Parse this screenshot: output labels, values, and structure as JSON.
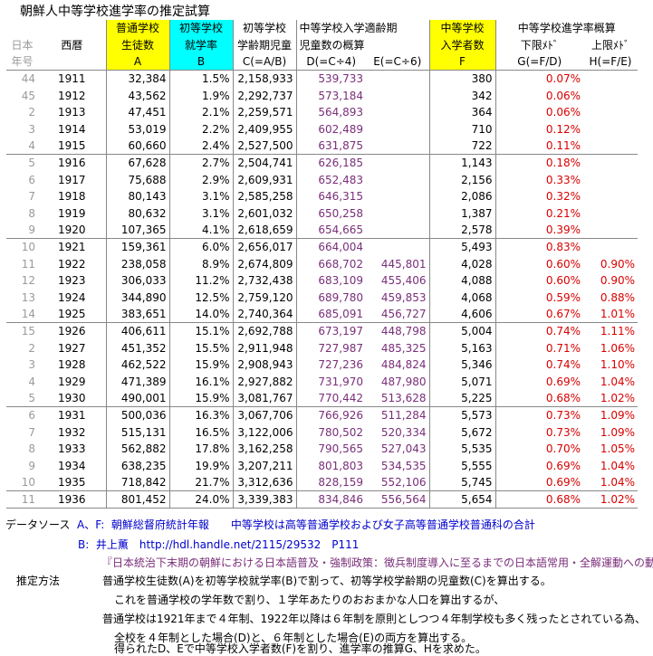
{
  "title": "朝鮮人中等学校進学率の推定試算",
  "header": {
    "era_top": "日本",
    "era_bottom": "年号",
    "year_col": "西暦",
    "A_l1": "普通学校",
    "A_l2": "生徒数",
    "A_l3": "A",
    "B_l1": "初等学校",
    "B_l2": "就学率",
    "B_l3": "B",
    "C_l1": "初等学校",
    "C_l2": "学齢期児童",
    "C_l3": "C(=A/B)",
    "DE_l1": "中等学校入学適齢期",
    "DE_l2": "児童数の概算",
    "D_l3": "D(=C÷4)",
    "E_l3": "E(=C÷6)",
    "F_l1": "中等学校",
    "F_l2": "入学者数",
    "F_l3": "F",
    "GH_l1": "中等学校進学率概算",
    "G_l2": "下限ﾒﾄﾞ",
    "H_l2": "上限ﾒﾄﾞ",
    "G_l3": "G(=F/D)",
    "H_l3": "H(=F/E)"
  },
  "rows": [
    {
      "era": "44",
      "year": "1911",
      "a": "32,384",
      "b": "1.5%",
      "c": "2,158,933",
      "d": "539,733",
      "e": "",
      "f": "380",
      "g": "0.07%",
      "h": ""
    },
    {
      "era": "45",
      "year": "1912",
      "a": "43,562",
      "b": "1.9%",
      "c": "2,292,737",
      "d": "573,184",
      "e": "",
      "f": "342",
      "g": "0.06%",
      "h": ""
    },
    {
      "era": "2",
      "year": "1913",
      "a": "47,451",
      "b": "2.1%",
      "c": "2,259,571",
      "d": "564,893",
      "e": "",
      "f": "364",
      "g": "0.06%",
      "h": ""
    },
    {
      "era": "3",
      "year": "1914",
      "a": "53,019",
      "b": "2.2%",
      "c": "2,409,955",
      "d": "602,489",
      "e": "",
      "f": "710",
      "g": "0.12%",
      "h": ""
    },
    {
      "era": "4",
      "year": "1915",
      "a": "60,660",
      "b": "2.4%",
      "c": "2,527,500",
      "d": "631,875",
      "e": "",
      "f": "722",
      "g": "0.11%",
      "h": ""
    },
    {
      "era": "5",
      "year": "1916",
      "a": "67,628",
      "b": "2.7%",
      "c": "2,504,741",
      "d": "626,185",
      "e": "",
      "f": "1,143",
      "g": "0.18%",
      "h": ""
    },
    {
      "era": "6",
      "year": "1917",
      "a": "75,688",
      "b": "2.9%",
      "c": "2,609,931",
      "d": "652,483",
      "e": "",
      "f": "2,156",
      "g": "0.33%",
      "h": ""
    },
    {
      "era": "7",
      "year": "1918",
      "a": "80,143",
      "b": "3.1%",
      "c": "2,585,258",
      "d": "646,315",
      "e": "",
      "f": "2,086",
      "g": "0.32%",
      "h": ""
    },
    {
      "era": "8",
      "year": "1919",
      "a": "80,632",
      "b": "3.1%",
      "c": "2,601,032",
      "d": "650,258",
      "e": "",
      "f": "1,387",
      "g": "0.21%",
      "h": ""
    },
    {
      "era": "9",
      "year": "1920",
      "a": "107,365",
      "b": "4.1%",
      "c": "2,618,659",
      "d": "654,665",
      "e": "",
      "f": "2,578",
      "g": "0.39%",
      "h": ""
    },
    {
      "era": "10",
      "year": "1921",
      "a": "159,361",
      "b": "6.0%",
      "c": "2,656,017",
      "d": "664,004",
      "e": "",
      "f": "5,493",
      "g": "0.83%",
      "h": ""
    },
    {
      "era": "11",
      "year": "1922",
      "a": "238,058",
      "b": "8.9%",
      "c": "2,674,809",
      "d": "668,702",
      "e": "445,801",
      "f": "4,028",
      "g": "0.60%",
      "h": "0.90%"
    },
    {
      "era": "12",
      "year": "1923",
      "a": "306,033",
      "b": "11.2%",
      "c": "2,732,438",
      "d": "683,109",
      "e": "455,406",
      "f": "4,088",
      "g": "0.60%",
      "h": "0.90%"
    },
    {
      "era": "13",
      "year": "1924",
      "a": "344,890",
      "b": "12.5%",
      "c": "2,759,120",
      "d": "689,780",
      "e": "459,853",
      "f": "4,068",
      "g": "0.59%",
      "h": "0.88%"
    },
    {
      "era": "14",
      "year": "1925",
      "a": "383,651",
      "b": "14.0%",
      "c": "2,740,364",
      "d": "685,091",
      "e": "456,727",
      "f": "4,606",
      "g": "0.67%",
      "h": "1.01%"
    },
    {
      "era": "15",
      "year": "1926",
      "a": "406,611",
      "b": "15.1%",
      "c": "2,692,788",
      "d": "673,197",
      "e": "448,798",
      "f": "5,004",
      "g": "0.74%",
      "h": "1.11%"
    },
    {
      "era": "2",
      "year": "1927",
      "a": "451,352",
      "b": "15.5%",
      "c": "2,911,948",
      "d": "727,987",
      "e": "485,325",
      "f": "5,163",
      "g": "0.71%",
      "h": "1.06%"
    },
    {
      "era": "3",
      "year": "1928",
      "a": "462,522",
      "b": "15.9%",
      "c": "2,908,943",
      "d": "727,236",
      "e": "484,824",
      "f": "5,346",
      "g": "0.74%",
      "h": "1.10%"
    },
    {
      "era": "4",
      "year": "1929",
      "a": "471,389",
      "b": "16.1%",
      "c": "2,927,882",
      "d": "731,970",
      "e": "487,980",
      "f": "5,071",
      "g": "0.69%",
      "h": "1.04%"
    },
    {
      "era": "5",
      "year": "1930",
      "a": "490,001",
      "b": "15.9%",
      "c": "3,081,767",
      "d": "770,442",
      "e": "513,628",
      "f": "5,225",
      "g": "0.68%",
      "h": "1.02%"
    },
    {
      "era": "6",
      "year": "1931",
      "a": "500,036",
      "b": "16.3%",
      "c": "3,067,706",
      "d": "766,926",
      "e": "511,284",
      "f": "5,573",
      "g": "0.73%",
      "h": "1.09%"
    },
    {
      "era": "7",
      "year": "1932",
      "a": "515,131",
      "b": "16.5%",
      "c": "3,122,006",
      "d": "780,502",
      "e": "520,334",
      "f": "5,672",
      "g": "0.73%",
      "h": "1.09%"
    },
    {
      "era": "8",
      "year": "1933",
      "a": "562,882",
      "b": "17.8%",
      "c": "3,162,258",
      "d": "790,565",
      "e": "527,043",
      "f": "5,535",
      "g": "0.70%",
      "h": "1.05%"
    },
    {
      "era": "9",
      "year": "1934",
      "a": "638,235",
      "b": "19.9%",
      "c": "3,207,211",
      "d": "801,803",
      "e": "534,535",
      "f": "5,555",
      "g": "0.69%",
      "h": "1.04%"
    },
    {
      "era": "10",
      "year": "1935",
      "a": "718,842",
      "b": "21.7%",
      "c": "3,312,636",
      "d": "828,159",
      "e": "552,106",
      "f": "5,745",
      "g": "0.69%",
      "h": "1.04%"
    },
    {
      "era": "11",
      "year": "1936",
      "a": "801,452",
      "b": "24.0%",
      "c": "3,339,383",
      "d": "834,846",
      "e": "556,564",
      "f": "5,654",
      "g": "0.68%",
      "h": "1.02%"
    }
  ],
  "notes": {
    "source_label": "データソース",
    "source_af_key": "A、F:",
    "source_af_text": "朝鮮総督府統計年報　　中等学校は高等普通学校および女子高等普通学校普通科の合計",
    "source_b_key": "B:",
    "source_b_text": "井上薫　http://hdl.handle.net/2115/29532　P111",
    "source_b_cite": "『日本統治下末期の朝鮮における日本語普及・強制政策：徴兵制度導入に至るまでの日本語常用・全解運動への動員』",
    "method_label": "推定方法",
    "method_1": "普通学校生徒数(A)を初等学校就学率(B)で割って、初等学校学齢期の児童数(C)を算出する。",
    "method_2": "これを普通学校の学年数で割り、１学年あたりのおおまかな人口を算出するが、",
    "method_3": "普通学校は1921年まで４年制、1922年以降は６年制を原則としつつ４年制学校も多く残ったとされている為、",
    "method_4": "全校を４年制とした場合(D)と、６年制とした場合(E)の両方を算出する。",
    "method_5": "得られたD、Eで中等学校入学者数(F)を割り、進学率の推算G、Hを求めた。"
  }
}
